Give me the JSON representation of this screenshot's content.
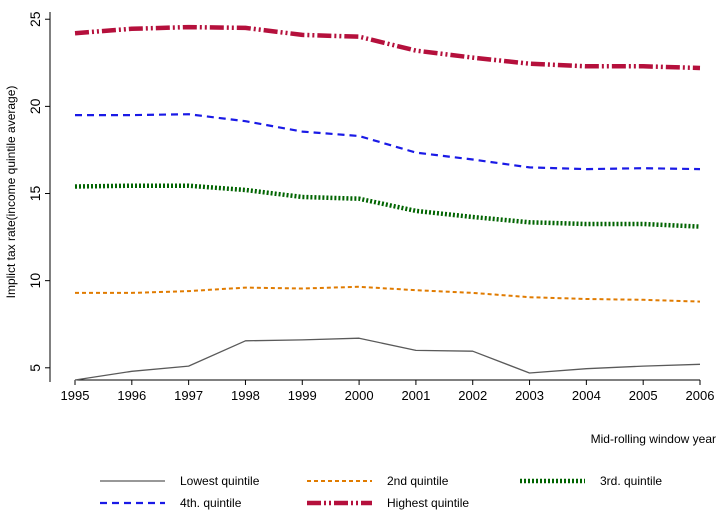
{
  "chart_data": {
    "type": "line",
    "title": "",
    "xlabel": "Mid-rolling window year",
    "ylabel": "Implict tax rate(income quintile average)",
    "x": [
      1995,
      1996,
      1997,
      1998,
      1999,
      2000,
      2001,
      2002,
      2003,
      2004,
      2005,
      2006
    ],
    "xlim": [
      1995,
      2006
    ],
    "ylim": [
      4.3,
      25.3
    ],
    "yticks": [
      5,
      10,
      15,
      20,
      25
    ],
    "grid": false,
    "legend_position": "bottom",
    "series": [
      {
        "name": "Lowest quintile",
        "color": "#5a5a5a",
        "style": "solid",
        "values": [
          4.3,
          4.8,
          5.1,
          6.55,
          6.6,
          6.7,
          6.0,
          5.95,
          4.7,
          4.95,
          5.1,
          5.2
        ]
      },
      {
        "name": "2nd quintile",
        "color": "#e07b00",
        "style": "short-dash",
        "values": [
          9.3,
          9.3,
          9.4,
          9.6,
          9.55,
          9.65,
          9.45,
          9.3,
          9.05,
          8.95,
          8.9,
          8.8
        ]
      },
      {
        "name": "3rd. quintile",
        "color": "#006400",
        "style": "dotted",
        "values": [
          15.4,
          15.45,
          15.45,
          15.2,
          14.8,
          14.7,
          14.0,
          13.65,
          13.35,
          13.25,
          13.25,
          13.1
        ]
      },
      {
        "name": "4th. quintile",
        "color": "#1a1ae6",
        "style": "dash",
        "values": [
          19.5,
          19.5,
          19.55,
          19.15,
          18.55,
          18.3,
          17.35,
          16.95,
          16.5,
          16.4,
          16.45,
          16.4
        ]
      },
      {
        "name": "Highest quintile",
        "color": "#b5103c",
        "style": "long-dash-dot",
        "values": [
          24.2,
          24.45,
          24.55,
          24.5,
          24.1,
          24.0,
          23.2,
          22.8,
          22.45,
          22.3,
          22.3,
          22.2
        ]
      }
    ]
  }
}
